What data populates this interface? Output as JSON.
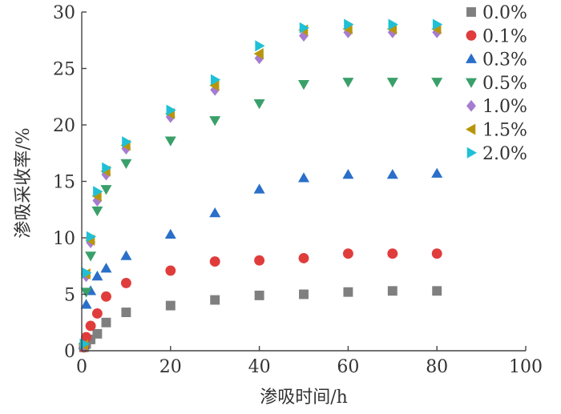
{
  "chart_data": {
    "type": "scatter",
    "xlabel": "渗吸时间/h",
    "ylabel": "渗吸采收率/%",
    "xlim": [
      0,
      100
    ],
    "ylim": [
      0,
      30
    ],
    "xticks": [
      0,
      20,
      40,
      60,
      80,
      100
    ],
    "yticks": [
      0,
      5,
      10,
      15,
      20,
      25,
      30
    ],
    "legend_position": "top-right",
    "series": [
      {
        "name": "0.0%",
        "marker": "square",
        "color": "#7f7f7f",
        "x": [
          0.5,
          1,
          2,
          3.5,
          5.5,
          10,
          20,
          30,
          40,
          50,
          60,
          70,
          80
        ],
        "y": [
          0.3,
          0.6,
          1.0,
          1.5,
          2.5,
          3.4,
          4.0,
          4.5,
          4.9,
          5.0,
          5.2,
          5.3,
          5.3
        ]
      },
      {
        "name": "0.1%",
        "marker": "circle",
        "color": "#e03c3c",
        "x": [
          0.5,
          1,
          2,
          3.5,
          5.5,
          10,
          20,
          30,
          40,
          50,
          60,
          70,
          80
        ],
        "y": [
          0.3,
          1.2,
          2.2,
          3.3,
          4.8,
          6.0,
          7.1,
          7.9,
          8.0,
          8.2,
          8.6,
          8.6,
          8.6
        ]
      },
      {
        "name": "0.3%",
        "marker": "triangle-up",
        "color": "#2a6fc9",
        "x": [
          0.5,
          1,
          2,
          3.5,
          5.5,
          10,
          20,
          30,
          40,
          50,
          60,
          70,
          80
        ],
        "y": [
          0.5,
          4.1,
          5.3,
          6.6,
          7.3,
          8.4,
          10.3,
          12.2,
          14.3,
          15.3,
          15.6,
          15.6,
          15.7
        ]
      },
      {
        "name": "0.5%",
        "marker": "triangle-down",
        "color": "#3aa06a",
        "x": [
          0.5,
          1,
          2,
          3.5,
          5.5,
          10,
          20,
          30,
          40,
          50,
          60,
          70,
          80
        ],
        "y": [
          0.3,
          5.2,
          8.4,
          12.4,
          14.3,
          16.6,
          18.6,
          20.4,
          21.9,
          23.6,
          23.8,
          23.8,
          23.8
        ]
      },
      {
        "name": "1.0%",
        "marker": "diamond",
        "color": "#a67ccf",
        "x": [
          0.5,
          1,
          2,
          3.5,
          5.5,
          10,
          20,
          30,
          40,
          50,
          60,
          70,
          80
        ],
        "y": [
          0.4,
          6.6,
          9.6,
          13.3,
          15.6,
          17.9,
          20.7,
          23.1,
          25.9,
          27.9,
          28.2,
          28.2,
          28.2
        ]
      },
      {
        "name": "1.5%",
        "marker": "triangle-left",
        "color": "#b8960c",
        "x": [
          0.5,
          1,
          2,
          3.5,
          5.5,
          10,
          20,
          30,
          40,
          50,
          60,
          70,
          80
        ],
        "y": [
          0.5,
          6.8,
          9.8,
          13.7,
          15.9,
          18.2,
          21.0,
          23.5,
          26.3,
          28.4,
          28.5,
          28.5,
          28.5
        ]
      },
      {
        "name": "2.0%",
        "marker": "triangle-right",
        "color": "#1fc0d6",
        "x": [
          0.5,
          1,
          2,
          3.5,
          5.5,
          10,
          20,
          30,
          40,
          50,
          60,
          70,
          80
        ],
        "y": [
          0.6,
          6.9,
          10.1,
          14.1,
          16.2,
          18.5,
          21.3,
          24.0,
          27.0,
          28.6,
          28.9,
          28.9,
          28.9
        ]
      }
    ]
  }
}
